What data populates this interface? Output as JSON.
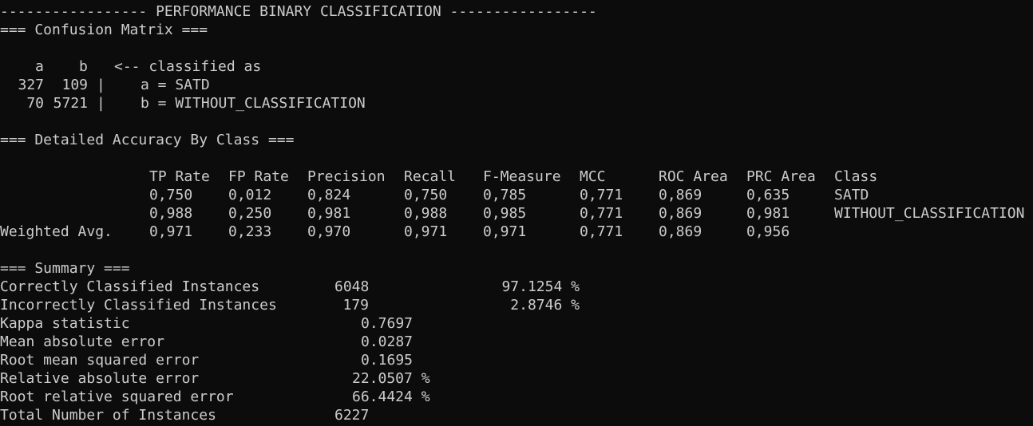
{
  "header": "----------------- PERFORMANCE BINARY CLASSIFICATION -----------------",
  "confusion": {
    "title": "=== Confusion Matrix ===",
    "col_a": "a",
    "col_b": "b",
    "classified_as": "<-- classified as",
    "rows": [
      {
        "a": "327",
        "b": "109",
        "sep": "|",
        "label": "a = SATD"
      },
      {
        "a": "70",
        "b": "5721",
        "sep": "|",
        "label": "b = WITHOUT_CLASSIFICATION"
      }
    ]
  },
  "accuracy": {
    "title": "=== Detailed Accuracy By Class ===",
    "headers": [
      "TP Rate",
      "FP Rate",
      "Precision",
      "Recall",
      "F-Measure",
      "MCC",
      "ROC Area",
      "PRC Area",
      "Class"
    ],
    "rows": [
      {
        "label": "",
        "values": [
          "0,750",
          "0,012",
          "0,824",
          "0,750",
          "0,785",
          "0,771",
          "0,869",
          "0,635",
          "SATD"
        ]
      },
      {
        "label": "",
        "values": [
          "0,988",
          "0,250",
          "0,981",
          "0,988",
          "0,985",
          "0,771",
          "0,869",
          "0,981",
          "WITHOUT_CLASSIFICATION"
        ]
      },
      {
        "label": "Weighted Avg.",
        "values": [
          "0,971",
          "0,233",
          "0,970",
          "0,971",
          "0,971",
          "0,771",
          "0,869",
          "0,956",
          ""
        ]
      }
    ]
  },
  "summary": {
    "title": "=== Summary ===",
    "rows": [
      {
        "label": "Correctly Classified Instances",
        "value": "6048",
        "extra": "97.1254 %"
      },
      {
        "label": "Incorrectly Classified Instances",
        "value": "179",
        "extra": "2.8746 %"
      },
      {
        "label": "Kappa statistic",
        "value": "0.7697",
        "extra": ""
      },
      {
        "label": "Mean absolute error",
        "value": "0.0287",
        "extra": ""
      },
      {
        "label": "Root mean squared error",
        "value": "0.1695",
        "extra": ""
      },
      {
        "label": "Relative absolute error",
        "value": "22.0507 %",
        "extra": ""
      },
      {
        "label": "Root relative squared error",
        "value": "66.4424 %",
        "extra": ""
      },
      {
        "label": "Total Number of Instances",
        "value": "6227",
        "extra": ""
      }
    ]
  }
}
